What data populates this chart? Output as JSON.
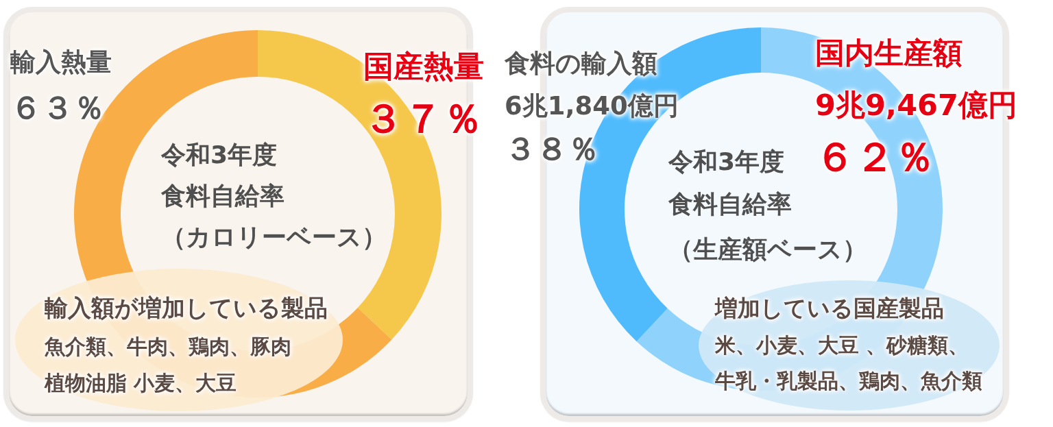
{
  "chart_data": [
    {
      "type": "donut",
      "title": "令和3年度食料自給率",
      "subtitle": "（カロリーベース）",
      "categories": [
        "国産熱量",
        "輸入熱量"
      ],
      "values": [
        37,
        63
      ],
      "colors": [
        "#f5c84b",
        "#f8ad47"
      ],
      "value_labels": [
        "３７％",
        "６３％"
      ],
      "annotations": [
        "輸入額が増加している製品",
        "魚介類、牛肉、鶏肉、豚肉植物油脂 小麦、大豆"
      ]
    },
    {
      "type": "donut",
      "title": "令和3年度食料自給率",
      "subtitle": "（生産額ベース）",
      "categories": [
        "国内生産額",
        "食料の輸入額"
      ],
      "values": [
        62,
        38
      ],
      "colors": [
        "#8fd3fd",
        "#4fbbfd"
      ],
      "value_labels": [
        "６２％",
        "３８％"
      ],
      "annotations": [
        {
          "text": "9兆9,467億円",
          "x": "国内生産額"
        },
        {
          "text": "6兆1,840億円",
          "x": "食料の輸入額"
        },
        "増加している国産製品",
        "米、小麦、大豆 、砂糖類、牛乳・乳製品、鶏肉、魚介類"
      ]
    }
  ]
}
